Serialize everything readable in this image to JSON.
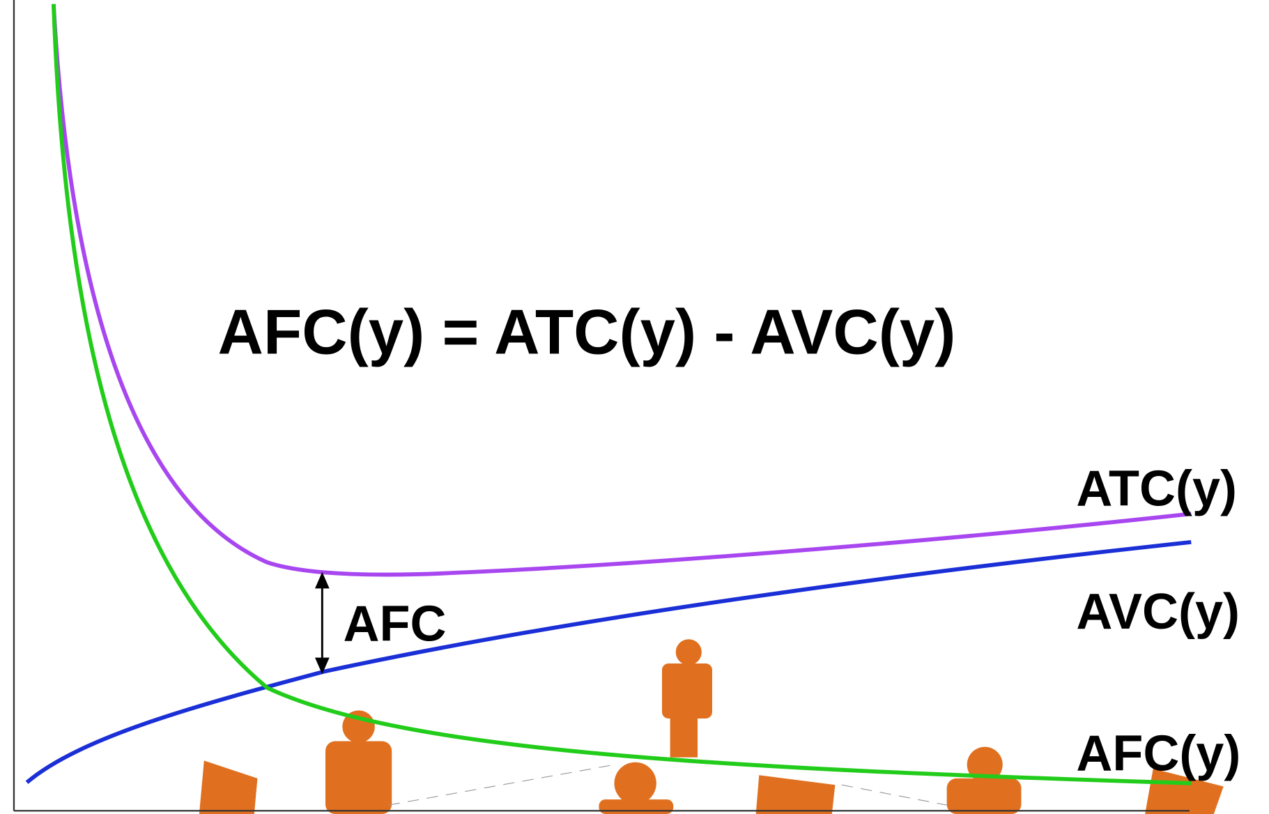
{
  "equation": "AFC(y) = ATC(y) - AVC(y)",
  "curve_labels": {
    "atc": "ATC(y)",
    "avc": "AVC(y)",
    "afc": "AFC(y)"
  },
  "gap_label": "AFC"
}
